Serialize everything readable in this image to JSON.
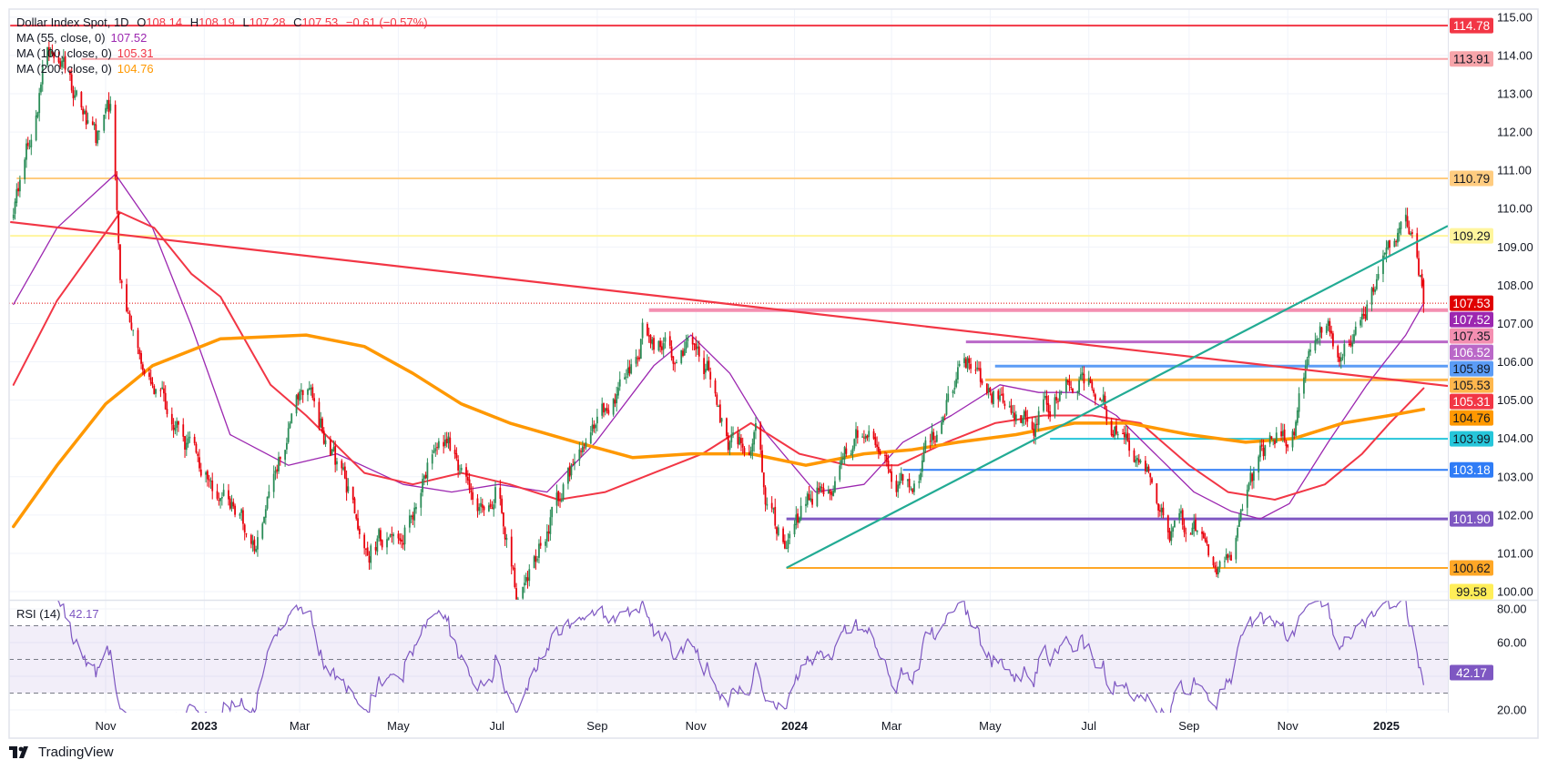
{
  "header": {
    "title": "Dollar Index Spot, 1D",
    "ohlc": [
      {
        "k": "O",
        "v": "108.14"
      },
      {
        "k": "H",
        "v": "108.19"
      },
      {
        "k": "L",
        "v": "107.28"
      },
      {
        "k": "C",
        "v": "107.53"
      }
    ],
    "change": "−0.61 (−0.57%)",
    "value_color": "#f23645"
  },
  "legend": {
    "moving_averages": [
      {
        "label": "MA (55, close, 0)",
        "value": "107.52",
        "color": "#9c27b0"
      },
      {
        "label": "MA (100, close, 0)",
        "value": "105.31",
        "color": "#f23645"
      },
      {
        "label": "MA (200, close, 0)",
        "value": "104.76",
        "color": "#ff9800"
      }
    ]
  },
  "chart_data": {
    "type": "candlestick",
    "symbol": "Dollar Index Spot",
    "interval": "1D",
    "ylim": [
      99.79,
      115.21
    ],
    "grid": true,
    "candle_colors": {
      "up": "#2a8c57",
      "down": "#e8000b"
    },
    "last_candle": {
      "open": 108.14,
      "high": 108.19,
      "low": 107.28,
      "close": 107.53
    },
    "close_path": [
      [
        "2022-09-05",
        110.0
      ],
      [
        "2022-09-26",
        114.2
      ],
      [
        "2022-10-11",
        113.1
      ],
      [
        "2022-10-26",
        111.6
      ],
      [
        "2022-11-04",
        112.4
      ],
      [
        "2022-11-10",
        108.3
      ],
      [
        "2022-11-16",
        106.9
      ],
      [
        "2022-12-01",
        105.2
      ],
      [
        "2022-12-18",
        104.1
      ],
      [
        "2023-01-11",
        102.6
      ],
      [
        "2023-02-01",
        101.3
      ],
      [
        "2023-02-22",
        104.4
      ],
      [
        "2023-03-08",
        105.6
      ],
      [
        "2023-03-15",
        104.4
      ],
      [
        "2023-03-29",
        102.6
      ],
      [
        "2023-04-13",
        101.4
      ],
      [
        "2023-05-04",
        101.5
      ],
      [
        "2023-05-27",
        104.2
      ],
      [
        "2023-06-20",
        102.5
      ],
      [
        "2023-07-02",
        103.0
      ],
      [
        "2023-07-14",
        99.9
      ],
      [
        "2023-07-26",
        101.2
      ],
      [
        "2023-08-18",
        103.4
      ],
      [
        "2023-09-11",
        104.8
      ],
      [
        "2023-09-29",
        106.9
      ],
      [
        "2023-10-17",
        106.3
      ],
      [
        "2023-10-29",
        106.6
      ],
      [
        "2023-11-09",
        105.8
      ],
      [
        "2023-11-21",
        103.6
      ],
      [
        "2023-12-09",
        104.0
      ],
      [
        "2023-12-15",
        102.3
      ],
      [
        "2023-12-27",
        100.9
      ],
      [
        "2024-01-08",
        102.4
      ],
      [
        "2024-01-31",
        103.3
      ],
      [
        "2024-02-12",
        104.3
      ],
      [
        "2024-03-07",
        102.9
      ],
      [
        "2024-03-13",
        102.7
      ],
      [
        "2024-03-31",
        104.5
      ],
      [
        "2024-04-15",
        106.2
      ],
      [
        "2024-05-05",
        105.1
      ],
      [
        "2024-05-29",
        104.6
      ],
      [
        "2024-06-22",
        105.7
      ],
      [
        "2024-07-09",
        105.0
      ],
      [
        "2024-08-02",
        103.2
      ],
      [
        "2024-08-08",
        102.9
      ],
      [
        "2024-08-20",
        101.5
      ],
      [
        "2024-09-01",
        101.7
      ],
      [
        "2024-09-13",
        101.2
      ],
      [
        "2024-09-25",
        100.6
      ],
      [
        "2024-10-06",
        102.5
      ],
      [
        "2024-10-24",
        104.2
      ],
      [
        "2024-11-05",
        104.3
      ],
      [
        "2024-11-17",
        106.7
      ],
      [
        "2024-11-26",
        106.8
      ],
      [
        "2024-12-05",
        106.1
      ],
      [
        "2024-12-17",
        107.2
      ],
      [
        "2024-12-28",
        108.0
      ],
      [
        "2025-01-03",
        108.9
      ],
      [
        "2025-01-12",
        109.6
      ],
      [
        "2025-01-18",
        108.6
      ],
      [
        "2025-01-24",
        107.53
      ]
    ],
    "moving_averages": [
      {
        "name": "MA (55, close, 0)",
        "color": "#9c27b0",
        "points": [
          [
            "2022-09-05",
            107.5
          ],
          [
            "2022-10-02",
            109.5
          ],
          [
            "2022-11-07",
            110.9
          ],
          [
            "2022-11-30",
            109.5
          ],
          [
            "2022-12-24",
            106.95
          ],
          [
            "2023-01-17",
            104.1
          ],
          [
            "2023-02-22",
            103.3
          ],
          [
            "2023-03-24",
            103.6
          ],
          [
            "2023-05-04",
            102.8
          ],
          [
            "2023-06-03",
            102.6
          ],
          [
            "2023-07-02",
            102.8
          ],
          [
            "2023-08-01",
            102.6
          ],
          [
            "2023-08-31",
            103.9
          ],
          [
            "2023-10-06",
            105.9
          ],
          [
            "2023-10-29",
            106.7
          ],
          [
            "2023-11-22",
            105.7
          ],
          [
            "2023-12-15",
            104.1
          ],
          [
            "2024-01-14",
            102.6
          ],
          [
            "2024-02-13",
            102.8
          ],
          [
            "2024-03-08",
            103.9
          ],
          [
            "2024-04-07",
            104.6
          ],
          [
            "2024-05-07",
            105.4
          ],
          [
            "2024-05-31",
            105.2
          ],
          [
            "2024-06-24",
            105.2
          ],
          [
            "2024-07-18",
            104.6
          ],
          [
            "2024-08-11",
            103.6
          ],
          [
            "2024-09-04",
            102.6
          ],
          [
            "2024-09-27",
            102.1
          ],
          [
            "2024-10-15",
            101.9
          ],
          [
            "2024-11-02",
            102.3
          ],
          [
            "2024-11-26",
            103.9
          ],
          [
            "2024-12-20",
            105.4
          ],
          [
            "2025-01-13",
            106.7
          ],
          [
            "2025-01-24",
            107.52
          ]
        ]
      },
      {
        "name": "MA (100, close, 0)",
        "color": "#f23645",
        "points": [
          [
            "2022-09-05",
            105.4
          ],
          [
            "2022-10-02",
            107.6
          ],
          [
            "2022-11-10",
            109.9
          ],
          [
            "2022-12-01",
            109.5
          ],
          [
            "2022-12-24",
            108.3
          ],
          [
            "2023-01-11",
            107.7
          ],
          [
            "2023-02-11",
            105.4
          ],
          [
            "2023-03-05",
            104.6
          ],
          [
            "2023-04-10",
            103.1
          ],
          [
            "2023-05-10",
            102.8
          ],
          [
            "2023-06-09",
            103.1
          ],
          [
            "2023-07-09",
            102.8
          ],
          [
            "2023-08-08",
            102.4
          ],
          [
            "2023-09-06",
            102.6
          ],
          [
            "2023-10-06",
            103.1
          ],
          [
            "2023-11-05",
            103.6
          ],
          [
            "2023-12-05",
            104.4
          ],
          [
            "2024-01-04",
            103.6
          ],
          [
            "2024-02-03",
            103.3
          ],
          [
            "2024-03-05",
            103.3
          ],
          [
            "2024-04-04",
            103.9
          ],
          [
            "2024-05-04",
            104.4
          ],
          [
            "2024-06-03",
            104.6
          ],
          [
            "2024-07-03",
            104.6
          ],
          [
            "2024-08-02",
            104.4
          ],
          [
            "2024-09-01",
            103.3
          ],
          [
            "2024-09-25",
            102.6
          ],
          [
            "2024-10-24",
            102.4
          ],
          [
            "2024-11-24",
            102.8
          ],
          [
            "2024-12-17",
            103.6
          ],
          [
            "2025-01-03",
            104.4
          ],
          [
            "2025-01-24",
            105.31
          ]
        ]
      },
      {
        "name": "MA (200, close, 0)",
        "color": "#ff9800",
        "points": [
          [
            "2022-09-05",
            101.7
          ],
          [
            "2022-10-02",
            103.3
          ],
          [
            "2022-11-01",
            104.9
          ],
          [
            "2022-11-30",
            105.9
          ],
          [
            "2023-01-11",
            106.6
          ],
          [
            "2023-03-05",
            106.7
          ],
          [
            "2023-04-10",
            106.4
          ],
          [
            "2023-05-10",
            105.7
          ],
          [
            "2023-06-09",
            104.9
          ],
          [
            "2023-07-09",
            104.4
          ],
          [
            "2023-08-19",
            103.9
          ],
          [
            "2023-09-23",
            103.5
          ],
          [
            "2023-10-29",
            103.6
          ],
          [
            "2023-12-05",
            103.6
          ],
          [
            "2024-01-08",
            103.3
          ],
          [
            "2024-02-13",
            103.6
          ],
          [
            "2024-03-13",
            103.7
          ],
          [
            "2024-04-11",
            103.9
          ],
          [
            "2024-05-17",
            104.1
          ],
          [
            "2024-06-22",
            104.4
          ],
          [
            "2024-07-26",
            104.4
          ],
          [
            "2024-09-01",
            104.1
          ],
          [
            "2024-10-06",
            103.9
          ],
          [
            "2024-11-05",
            104.0
          ],
          [
            "2024-12-05",
            104.4
          ],
          [
            "2025-01-03",
            104.6
          ],
          [
            "2025-01-24",
            104.76
          ]
        ]
      }
    ],
    "levels": [
      {
        "price": 114.78,
        "label": "114.78",
        "color": "#f23645",
        "text_color": "#ffffff",
        "from": "2022-09-03"
      },
      {
        "price": 113.91,
        "label": "113.91",
        "color": "#f7a5aa",
        "text_color": "#131722",
        "from": "2022-10-17"
      },
      {
        "price": 110.79,
        "label": "110.79",
        "color": "#ffcc80",
        "text_color": "#131722",
        "from": "2022-09-07"
      },
      {
        "price": 109.29,
        "label": "109.29",
        "color": "#fff59d",
        "text_color": "#131722",
        "from": "2022-09-03"
      },
      {
        "price": 107.35,
        "label": "107.35",
        "color": "#f48fb1",
        "text_color": "#131722",
        "from": "2023-10-03"
      },
      {
        "price": 106.52,
        "label": "106.52",
        "color": "#ba68c8",
        "text_color": "#ffffff",
        "from": "2024-04-16"
      },
      {
        "price": 105.89,
        "label": "105.89",
        "color": "#5b9cf6",
        "text_color": "#131722",
        "from": "2024-05-04"
      },
      {
        "price": 105.53,
        "label": "105.53",
        "color": "#ffb74d",
        "text_color": "#131722",
        "from": "2024-04-28"
      },
      {
        "price": 103.99,
        "label": "103.99",
        "color": "#26c6da",
        "text_color": "#131722",
        "from": "2024-06-07"
      },
      {
        "price": 103.18,
        "label": "103.18",
        "color": "#2f7cf6",
        "text_color": "#ffffff",
        "from": "2024-03-08"
      },
      {
        "price": 101.9,
        "label": "101.90",
        "color": "#7e57c2",
        "text_color": "#ffffff",
        "from": "2023-12-27"
      },
      {
        "price": 100.62,
        "label": "100.62",
        "color": "#ffa726",
        "text_color": "#131722",
        "from": "2023-12-27"
      }
    ],
    "trendlines": [
      {
        "color": "#f23645",
        "from": [
          "2022-09-03",
          109.65
        ],
        "to": [
          "2025-02-08",
          105.37
        ]
      },
      {
        "color": "#22ab94",
        "from": [
          "2023-12-27",
          100.62
        ],
        "to": [
          "2025-02-08",
          109.55
        ]
      }
    ],
    "current_price": {
      "value": 107.53,
      "label": "107.53",
      "color": "#e00000",
      "text_color": "#ffffff"
    },
    "ma_labels": [
      {
        "value": 107.52,
        "label": "107.52",
        "color": "#9c27b0",
        "text_color": "#ffffff"
      },
      {
        "value": 105.31,
        "label": "105.31",
        "color": "#f23645",
        "text_color": "#ffffff"
      },
      {
        "value": 104.76,
        "label": "104.76",
        "color": "#ff9800",
        "text_color": "#131722"
      }
    ],
    "low_marker": {
      "value": 99.58,
      "label": "99.58",
      "color": "#ffee58",
      "text_color": "#131722"
    },
    "price_axis": [
      {
        "value": 115,
        "label": "115.00"
      },
      {
        "value": 114,
        "label": "114.00"
      },
      {
        "value": 113,
        "label": "113.00"
      },
      {
        "value": 112,
        "label": "112.00"
      },
      {
        "value": 111,
        "label": "111.00"
      },
      {
        "value": 110,
        "label": "110.00"
      },
      {
        "value": 109,
        "label": "109.00"
      },
      {
        "value": 108,
        "label": "108.00"
      },
      {
        "value": 107,
        "label": "107.00"
      },
      {
        "value": 106,
        "label": "106.00"
      },
      {
        "value": 105,
        "label": "105.00"
      },
      {
        "value": 104,
        "label": "104.00"
      },
      {
        "value": 103,
        "label": "103.00"
      },
      {
        "value": 102,
        "label": "102.00"
      },
      {
        "value": 101,
        "label": "101.00"
      },
      {
        "value": 100,
        "label": "100.00"
      }
    ],
    "time_axis": [
      {
        "date": "2022-11-01",
        "label": "Nov",
        "year": false
      },
      {
        "date": "2023-01-01",
        "label": "2023",
        "year": true
      },
      {
        "date": "2023-03-01",
        "label": "Mar",
        "year": false
      },
      {
        "date": "2023-05-01",
        "label": "May",
        "year": false
      },
      {
        "date": "2023-07-01",
        "label": "Jul",
        "year": false
      },
      {
        "date": "2023-09-01",
        "label": "Sep",
        "year": false
      },
      {
        "date": "2023-11-01",
        "label": "Nov",
        "year": false
      },
      {
        "date": "2024-01-01",
        "label": "2024",
        "year": true
      },
      {
        "date": "2024-03-01",
        "label": "Mar",
        "year": false
      },
      {
        "date": "2024-05-01",
        "label": "May",
        "year": false
      },
      {
        "date": "2024-07-01",
        "label": "Jul",
        "year": false
      },
      {
        "date": "2024-09-01",
        "label": "Sep",
        "year": false
      },
      {
        "date": "2024-11-01",
        "label": "Nov",
        "year": false
      },
      {
        "date": "2025-01-01",
        "label": "2025",
        "year": true
      }
    ],
    "rsi": {
      "label": "RSI (14)",
      "value": "42.17",
      "period": 14,
      "color": "#7e57c2",
      "levels": [
        70,
        50,
        30
      ],
      "band": [
        30,
        70
      ],
      "ylim": [
        20,
        80
      ],
      "ticks": [
        {
          "value": 80,
          "label": "80.00"
        },
        {
          "value": 60,
          "label": "60.00"
        },
        {
          "value": 20,
          "label": "20.00"
        }
      ]
    }
  },
  "footer": {
    "brand": "TradingView"
  }
}
